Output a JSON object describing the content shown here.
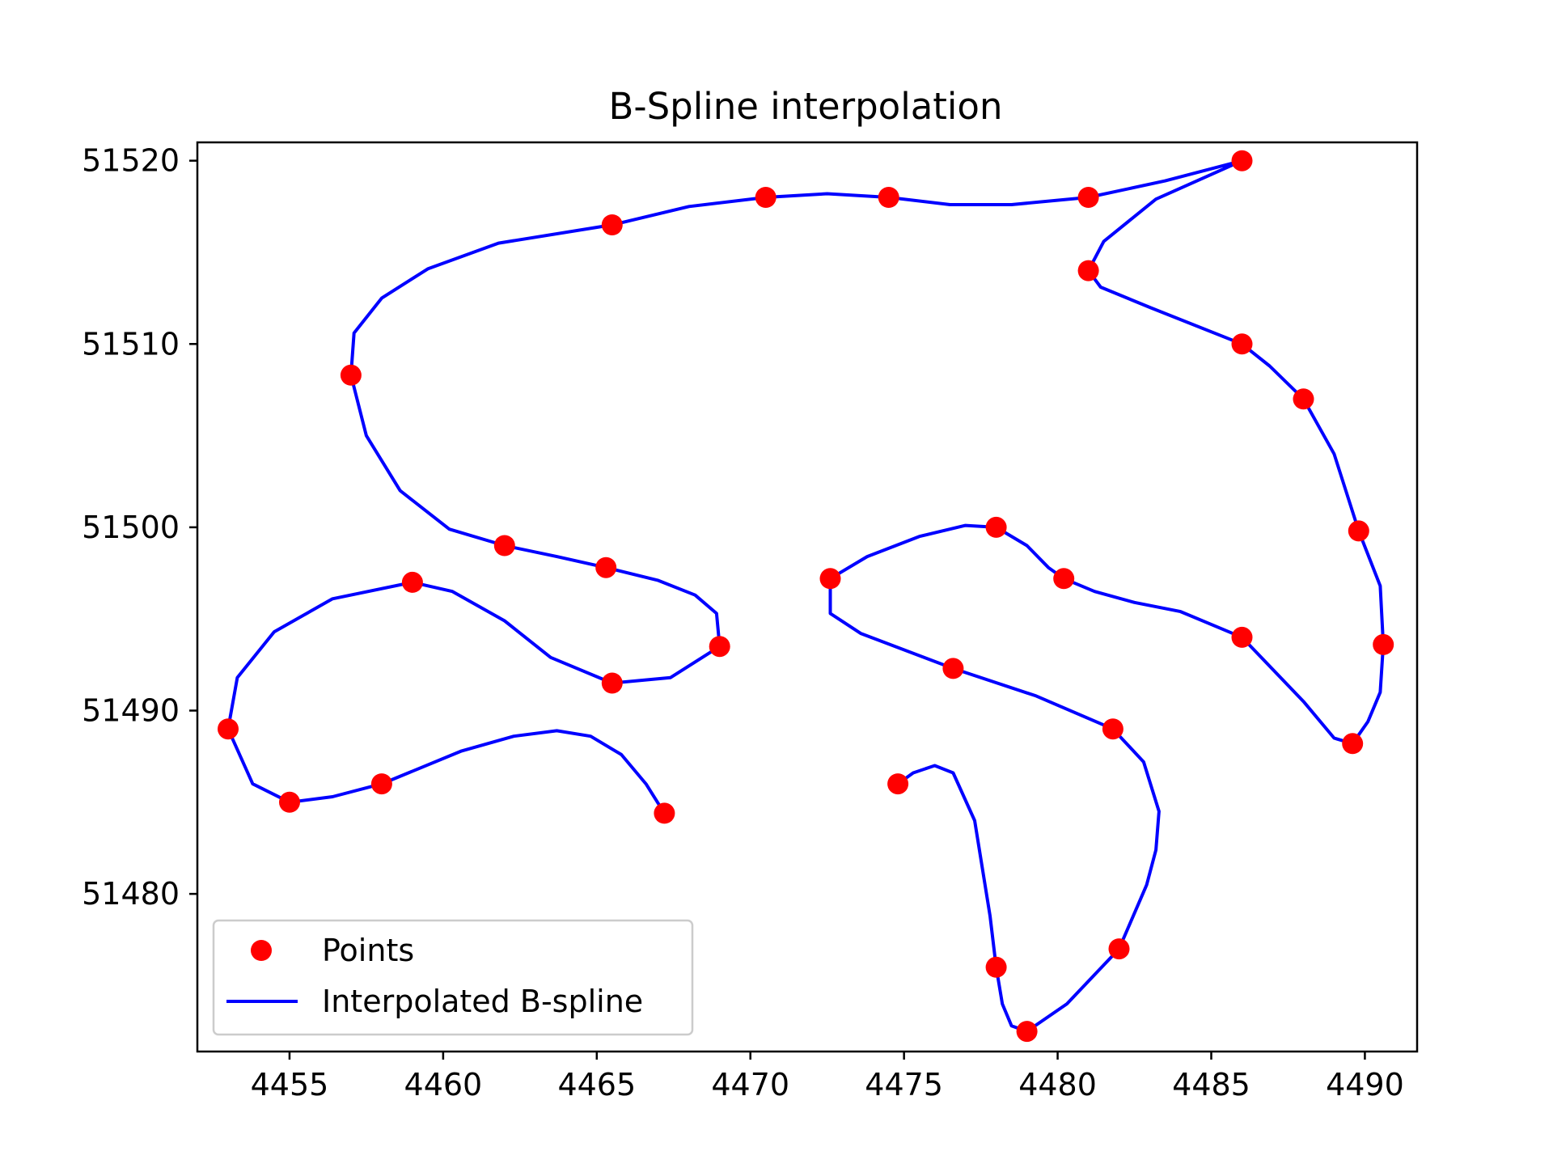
{
  "chart_data": {
    "type": "line",
    "title": "B-Spline interpolation",
    "xlabel": "",
    "ylabel": "",
    "xlim": [
      4452,
      4491.7
    ],
    "ylim": [
      51471.4,
      51521
    ],
    "x_ticks": [
      4455,
      4460,
      4465,
      4470,
      4475,
      4480,
      4485,
      4490
    ],
    "y_ticks": [
      51480,
      51490,
      51500,
      51510,
      51520
    ],
    "grid": false,
    "legend": {
      "placement": "lower-left"
    },
    "colors": {
      "points": "#ff0000",
      "spline": "#0000ff",
      "axes": "#000000"
    },
    "series": [
      {
        "name": "Points",
        "kind": "scatter",
        "x": [
          4467.2,
          4458.0,
          4455.0,
          4453.0,
          4459.0,
          4465.5,
          4469.0,
          4465.3,
          4462.0,
          4457.0,
          4465.5,
          4470.5,
          4474.5,
          4481.0,
          4486.0,
          4481.0,
          4486.0,
          4488.0,
          4489.8,
          4490.6,
          4489.6,
          4486.0,
          4480.2,
          4478.0,
          4472.6,
          4476.6,
          4481.8,
          4482.0,
          4479.0,
          4478.0,
          4474.8
        ],
        "y": [
          51484.4,
          51486.0,
          51485.0,
          51489.0,
          51497.0,
          51491.5,
          51493.5,
          51497.8,
          51499.0,
          51508.3,
          51516.5,
          51518.0,
          51518.0,
          51518.0,
          51520.0,
          51514.0,
          51510.0,
          51507.0,
          51499.8,
          51493.6,
          51488.2,
          51494.0,
          51497.2,
          51500.0,
          51497.2,
          51492.3,
          51489.0,
          51477.0,
          51472.5,
          51476.0,
          51486.0
        ]
      },
      {
        "name": "Interpolated B-spline",
        "kind": "line",
        "x": [
          4467.2,
          4466.6,
          4465.8,
          4464.8,
          4463.7,
          4462.3,
          4460.6,
          4458.0,
          4456.4,
          4455.0,
          4453.8,
          4453.0,
          4453.3,
          4454.5,
          4456.4,
          4459.0,
          4460.3,
          4462.0,
          4463.5,
          4465.5,
          4467.4,
          4469.0,
          4468.9,
          4468.2,
          4467.0,
          4465.3,
          4463.7,
          4462.0,
          4460.2,
          4458.6,
          4457.5,
          4457.0,
          4457.1,
          4458.0,
          4459.5,
          4461.8,
          4465.5,
          4468.0,
          4470.5,
          4472.5,
          4474.5,
          4476.5,
          4478.5,
          4481.0,
          4483.5,
          4486.0,
          4483.2,
          4481.5,
          4481.0,
          4481.4,
          4483.0,
          4486.0,
          4486.9,
          4488.0,
          4489.0,
          4489.8,
          4490.5,
          4490.6,
          4490.5,
          4490.1,
          4489.6,
          4489.0,
          4488.0,
          4486.0,
          4484.0,
          4482.5,
          4481.2,
          4480.2,
          4479.7,
          4479.0,
          4478.0,
          4477.0,
          4475.5,
          4473.8,
          4472.6,
          4472.6,
          4473.6,
          4476.6,
          4479.3,
          4481.8,
          4482.8,
          4483.3,
          4483.2,
          4482.9,
          4482.0,
          4480.3,
          4479.0,
          4478.5,
          4478.2,
          4478.0,
          4477.8,
          4477.3,
          4476.6,
          4476.0,
          4475.3,
          4474.8
        ],
        "y": [
          51484.4,
          51486.0,
          51487.6,
          51488.6,
          51488.9,
          51488.6,
          51487.8,
          51486.0,
          51485.3,
          51485.0,
          51486.0,
          51489.0,
          51491.8,
          51494.3,
          51496.1,
          51497.0,
          51496.5,
          51494.9,
          51492.9,
          51491.5,
          51491.8,
          51493.5,
          51495.3,
          51496.3,
          51497.1,
          51497.8,
          51498.4,
          51499.0,
          51499.9,
          51502.0,
          51505.0,
          51508.3,
          51510.6,
          51512.5,
          51514.1,
          51515.5,
          51516.5,
          51517.5,
          51518.0,
          51518.2,
          51518.0,
          51517.6,
          51517.6,
          51518.0,
          51518.9,
          51520.0,
          51517.9,
          51515.6,
          51514.0,
          51513.1,
          51512.0,
          51510.0,
          51508.8,
          51507.0,
          51504.0,
          51499.8,
          51496.8,
          51493.6,
          51491.0,
          51489.4,
          51488.2,
          51488.5,
          51490.5,
          51494.0,
          51495.4,
          51495.9,
          51496.5,
          51497.2,
          51497.8,
          51499.0,
          51500.0,
          51500.1,
          51499.5,
          51498.4,
          51497.2,
          51495.3,
          51494.2,
          51492.3,
          51490.8,
          51489.0,
          51487.2,
          51484.5,
          51482.4,
          51480.5,
          51477.0,
          51474.0,
          51472.5,
          51472.8,
          51474.0,
          51476.0,
          51478.8,
          51484.0,
          51486.6,
          51487.0,
          51486.6,
          51486.0
        ]
      }
    ]
  }
}
